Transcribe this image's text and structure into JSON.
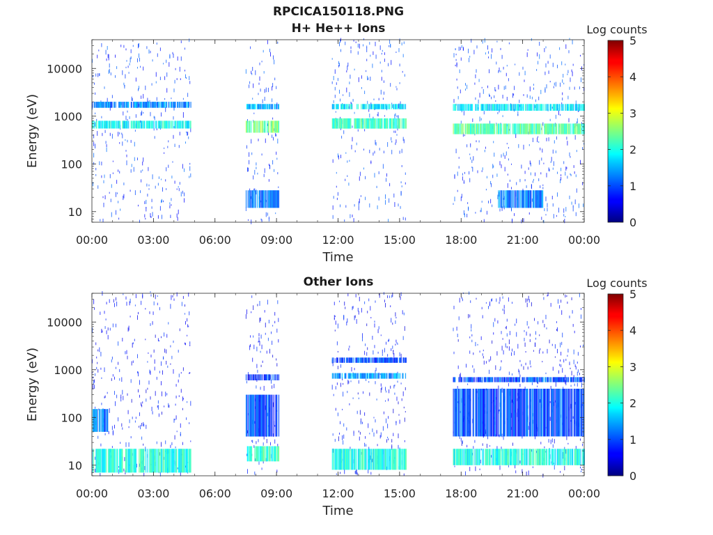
{
  "figure": {
    "title": "RPCICA150118.PNG"
  },
  "chart_data": [
    {
      "type": "heatmap",
      "title": "H+ He++ Ions",
      "xlabel": "Time",
      "ylabel": "Energy (eV)",
      "x_ticks": [
        "00:00",
        "03:00",
        "06:00",
        "09:00",
        "12:00",
        "15:00",
        "18:00",
        "21:00",
        "00:00"
      ],
      "x_range_hours": [
        0,
        24
      ],
      "y_scale": "log",
      "y_ticks": [
        "10",
        "100",
        "1000",
        "10000"
      ],
      "y_range": [
        6,
        40000
      ],
      "colorbar": {
        "label": "Log counts",
        "ticks": [
          "0",
          "1",
          "2",
          "3",
          "4",
          "5"
        ],
        "range": [
          0,
          5
        ],
        "colormap": "jet"
      },
      "data_gaps_hours": [
        [
          4.8,
          7.5
        ],
        [
          9.1,
          11.7
        ],
        [
          15.3,
          17.6
        ]
      ],
      "observed_intervals_hours": [
        [
          0,
          4.8
        ],
        [
          7.5,
          9.1
        ],
        [
          11.7,
          15.3
        ],
        [
          17.6,
          24
        ]
      ],
      "features": [
        {
          "t": [
            0,
            4.8
          ],
          "energy": [
            550,
            800
          ],
          "level": 1.9
        },
        {
          "t": [
            0,
            4.8
          ],
          "energy": [
            1500,
            2000
          ],
          "level": 1.3
        },
        {
          "t": [
            7.5,
            9.1
          ],
          "energy": [
            450,
            800
          ],
          "level": 2.5
        },
        {
          "t": [
            7.5,
            9.1
          ],
          "energy": [
            1400,
            1800
          ],
          "level": 1.5
        },
        {
          "t": [
            11.7,
            15.3
          ],
          "energy": [
            550,
            900
          ],
          "level": 2.1
        },
        {
          "t": [
            11.7,
            15.3
          ],
          "energy": [
            1400,
            1800
          ],
          "level": 1.8
        },
        {
          "t": [
            17.6,
            24
          ],
          "energy": [
            420,
            700
          ],
          "level": 2.3
        },
        {
          "t": [
            17.6,
            24
          ],
          "energy": [
            1300,
            1800
          ],
          "level": 1.8
        },
        {
          "t": [
            7.5,
            9.1
          ],
          "energy": [
            12,
            28
          ],
          "level": 1.2
        },
        {
          "t": [
            19.8,
            22.0
          ],
          "energy": [
            12,
            28
          ],
          "level": 1.2
        }
      ]
    },
    {
      "type": "heatmap",
      "title": "Other Ions",
      "xlabel": "Time",
      "ylabel": "Energy (eV)",
      "x_ticks": [
        "00:00",
        "03:00",
        "06:00",
        "09:00",
        "12:00",
        "15:00",
        "18:00",
        "21:00",
        "00:00"
      ],
      "x_range_hours": [
        0,
        24
      ],
      "y_scale": "log",
      "y_ticks": [
        "10",
        "100",
        "1000",
        "10000"
      ],
      "y_range": [
        6,
        40000
      ],
      "colorbar": {
        "label": "Log counts",
        "ticks": [
          "0",
          "1",
          "2",
          "3",
          "4",
          "5"
        ],
        "range": [
          0,
          5
        ],
        "colormap": "jet"
      },
      "data_gaps_hours": [
        [
          4.8,
          7.5
        ],
        [
          9.1,
          11.7
        ],
        [
          15.3,
          17.6
        ]
      ],
      "observed_intervals_hours": [
        [
          0,
          4.8
        ],
        [
          7.5,
          9.1
        ],
        [
          11.7,
          15.3
        ],
        [
          17.6,
          24
        ]
      ],
      "features": [
        {
          "t": [
            0,
            4.8
          ],
          "energy": [
            7,
            22
          ],
          "level": 2.0
        },
        {
          "t": [
            7.5,
            9.1
          ],
          "energy": [
            12,
            25
          ],
          "level": 2.1
        },
        {
          "t": [
            11.7,
            15.3
          ],
          "energy": [
            8,
            22
          ],
          "level": 2.0
        },
        {
          "t": [
            17.6,
            24
          ],
          "energy": [
            10,
            22
          ],
          "level": 2.0
        },
        {
          "t": [
            0,
            0.8
          ],
          "energy": [
            50,
            150
          ],
          "level": 1.3
        },
        {
          "t": [
            7.5,
            9.1
          ],
          "energy": [
            40,
            300
          ],
          "level": 1.0
        },
        {
          "t": [
            17.6,
            24
          ],
          "energy": [
            40,
            400
          ],
          "level": 1.0
        },
        {
          "t": [
            7.5,
            9.1
          ],
          "energy": [
            600,
            800
          ],
          "level": 0.8
        },
        {
          "t": [
            17.6,
            24
          ],
          "energy": [
            550,
            700
          ],
          "level": 1.0
        },
        {
          "t": [
            11.7,
            15.3
          ],
          "energy": [
            650,
            850
          ],
          "level": 1.4
        },
        {
          "t": [
            11.7,
            15.3
          ],
          "energy": [
            1400,
            1800
          ],
          "level": 1.0
        }
      ]
    }
  ]
}
